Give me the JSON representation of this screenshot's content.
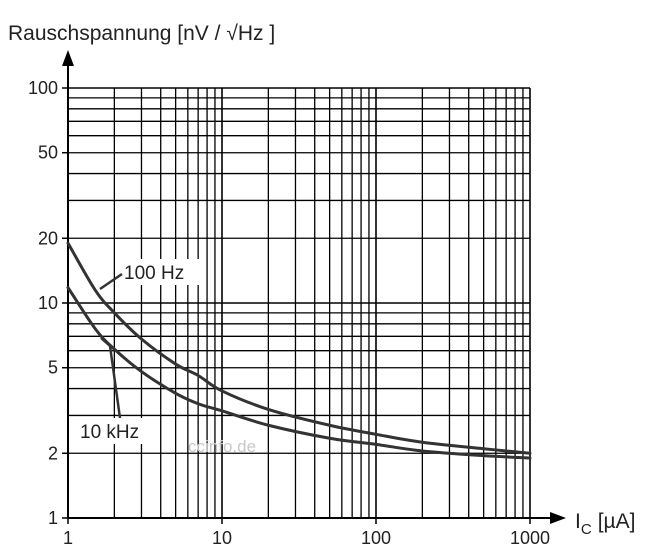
{
  "chart_data": {
    "type": "line",
    "ylabel": "Rauschspannung [nV / √Hz ]",
    "xlabel_main": "I",
    "xlabel_sub": "C",
    "xlabel_unit": "[µA]",
    "x_scale": "log",
    "y_scale": "log",
    "xlim": [
      1,
      1000
    ],
    "ylim": [
      1,
      100
    ],
    "grid": true,
    "x_ticks": [
      1,
      10,
      100,
      1000
    ],
    "x_tick_labels": [
      "1",
      "10",
      "100",
      "1000"
    ],
    "y_ticks": [
      1,
      2,
      5,
      10,
      20,
      50,
      100
    ],
    "y_tick_labels": [
      "1",
      "2",
      "5",
      "10",
      "20",
      "50",
      "100"
    ],
    "series": [
      {
        "name": "100 Hz",
        "color": "#333333",
        "x": [
          1,
          1.5,
          2,
          3,
          5,
          7,
          10,
          20,
          50,
          100,
          200,
          500,
          1000
        ],
        "y": [
          19,
          11.5,
          9.0,
          6.8,
          5.2,
          4.6,
          3.9,
          3.2,
          2.7,
          2.45,
          2.25,
          2.1,
          2.0
        ]
      },
      {
        "name": "10 kHz",
        "color": "#333333",
        "x": [
          1,
          1.5,
          2,
          3,
          5,
          7,
          10,
          20,
          50,
          100,
          200,
          500,
          1000
        ],
        "y": [
          11.8,
          7.6,
          6.1,
          4.8,
          3.8,
          3.4,
          3.15,
          2.7,
          2.35,
          2.2,
          2.05,
          1.95,
          1.9
        ]
      }
    ],
    "annotations": [
      {
        "text": "100 Hz",
        "series": "100 Hz"
      },
      {
        "text": "10 kHz",
        "series": "10 kHz"
      }
    ],
    "watermark": "ccinfo.de"
  }
}
